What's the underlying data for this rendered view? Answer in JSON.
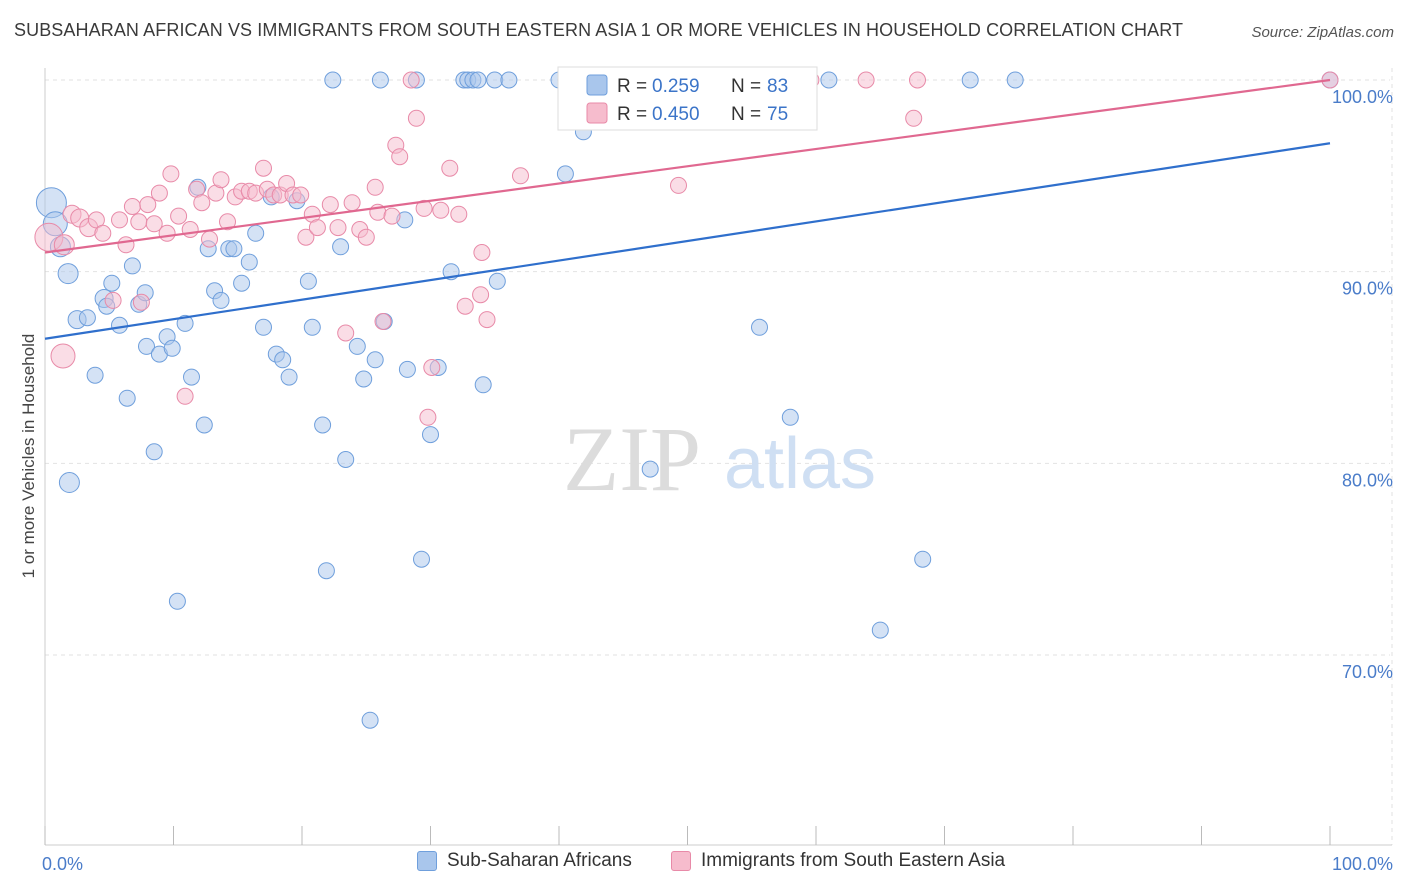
{
  "title": "SUBSAHARAN AFRICAN VS IMMIGRANTS FROM SOUTH EASTERN ASIA 1 OR MORE VEHICLES IN HOUSEHOLD CORRELATION CHART",
  "source": "Source: ZipAtlas.com",
  "watermark": {
    "zip": "ZIP",
    "atlas": "atlas"
  },
  "colors": {
    "blue_fill": "#a9c6ec",
    "blue_stroke": "#6f9fdc",
    "blue_line": "#2f6fcc",
    "pink_fill": "#f6bccd",
    "pink_stroke": "#e88aa8",
    "pink_line": "#e06890",
    "tick_label": "#4a7cc9",
    "grid": "#e2e2e2",
    "axis": "#cccccc"
  },
  "stats_box": {
    "rows": [
      {
        "series": "blue",
        "r_label": "R =",
        "r_value": "0.259",
        "n_label": "N =",
        "n_value": "83"
      },
      {
        "series": "pink",
        "r_label": "R =",
        "r_value": "0.450",
        "n_label": "N =",
        "n_value": "75"
      }
    ]
  },
  "legend": [
    {
      "series": "blue",
      "label": "Sub-Saharan Africans"
    },
    {
      "series": "pink",
      "label": "Immigrants from South Eastern Asia"
    }
  ],
  "chart_data": {
    "type": "scatter",
    "title": "SUBSAHARAN AFRICAN VS IMMIGRANTS FROM SOUTH EASTERN ASIA 1 OR MORE VEHICLES IN HOUSEHOLD CORRELATION CHART",
    "xlabel": "",
    "ylabel": "1 or more Vehicles in Household",
    "xlim": [
      0,
      100
    ],
    "ylim": [
      61,
      101.5
    ],
    "x_tick_labels": [
      "0.0%",
      "100.0%"
    ],
    "y_ticks": [
      {
        "value": 100,
        "label": "100.0%"
      },
      {
        "value": 90,
        "label": "90.0%"
      },
      {
        "value": 80,
        "label": "80.0%"
      },
      {
        "value": 70,
        "label": "70.0%"
      }
    ],
    "grid": true,
    "legend_position": "bottom",
    "series": [
      {
        "name": "Sub-Saharan Africans",
        "color": "blue",
        "r": 0.259,
        "n": 83,
        "trend": {
          "x": [
            0,
            100
          ],
          "y": [
            86.5,
            96.7
          ]
        },
        "points": [
          [
            0.5,
            93.6,
            15
          ],
          [
            0.8,
            92.5,
            12
          ],
          [
            1.2,
            91.3,
            10
          ],
          [
            1.8,
            89.9,
            10
          ],
          [
            2.5,
            87.5,
            9
          ],
          [
            1.9,
            79.0,
            10
          ],
          [
            3.3,
            87.6,
            8
          ],
          [
            3.9,
            84.6,
            8
          ],
          [
            4.6,
            88.6,
            9
          ],
          [
            4.8,
            88.2,
            8
          ],
          [
            5.2,
            89.4,
            8
          ],
          [
            5.8,
            87.2,
            8
          ],
          [
            6.4,
            83.4,
            8
          ],
          [
            6.8,
            90.3,
            8
          ],
          [
            7.3,
            88.3,
            8
          ],
          [
            7.8,
            88.9,
            8
          ],
          [
            7.9,
            86.1,
            8
          ],
          [
            8.5,
            80.6,
            8
          ],
          [
            8.9,
            85.7,
            8
          ],
          [
            9.5,
            86.6,
            8
          ],
          [
            9.9,
            86.0,
            8
          ],
          [
            10.3,
            72.8,
            8
          ],
          [
            10.9,
            87.3,
            8
          ],
          [
            11.4,
            84.5,
            8
          ],
          [
            11.9,
            94.4,
            8
          ],
          [
            12.4,
            82.0,
            8
          ],
          [
            12.7,
            91.2,
            8
          ],
          [
            13.2,
            89.0,
            8
          ],
          [
            13.7,
            88.5,
            8
          ],
          [
            14.3,
            91.2,
            8
          ],
          [
            14.7,
            91.2,
            8
          ],
          [
            15.3,
            89.4,
            8
          ],
          [
            15.9,
            90.5,
            8
          ],
          [
            16.4,
            92.0,
            8
          ],
          [
            17.0,
            87.1,
            8
          ],
          [
            17.6,
            93.9,
            8
          ],
          [
            18.0,
            85.7,
            8
          ],
          [
            18.5,
            85.4,
            8
          ],
          [
            19.0,
            84.5,
            8
          ],
          [
            19.6,
            93.7,
            8
          ],
          [
            20.5,
            89.5,
            8
          ],
          [
            20.8,
            87.1,
            8
          ],
          [
            21.6,
            82.0,
            8
          ],
          [
            21.9,
            74.4,
            8
          ],
          [
            22.4,
            100.0,
            8
          ],
          [
            23.0,
            91.3,
            8
          ],
          [
            23.4,
            80.2,
            8
          ],
          [
            24.3,
            86.1,
            8
          ],
          [
            24.8,
            84.4,
            8
          ],
          [
            25.3,
            66.6,
            8
          ],
          [
            25.7,
            85.4,
            8
          ],
          [
            26.1,
            100.0,
            8
          ],
          [
            26.4,
            87.4,
            8
          ],
          [
            28.0,
            92.7,
            8
          ],
          [
            28.2,
            84.9,
            8
          ],
          [
            28.9,
            100.0,
            8
          ],
          [
            29.3,
            75.0,
            8
          ],
          [
            30.0,
            81.5,
            8
          ],
          [
            30.6,
            85.0,
            8
          ],
          [
            31.6,
            90.0,
            8
          ],
          [
            32.6,
            100.0,
            8
          ],
          [
            32.9,
            100.0,
            8
          ],
          [
            33.3,
            100.0,
            8
          ],
          [
            33.7,
            100.0,
            8
          ],
          [
            34.1,
            84.1,
            8
          ],
          [
            35.0,
            100.0,
            8
          ],
          [
            35.2,
            89.5,
            8
          ],
          [
            36.1,
            100.0,
            8
          ],
          [
            40.0,
            100.0,
            8
          ],
          [
            40.5,
            95.1,
            8
          ],
          [
            41.9,
            97.3,
            8
          ],
          [
            42.8,
            100.0,
            8
          ],
          [
            45.7,
            100.0,
            8
          ],
          [
            47.1,
            79.7,
            8
          ],
          [
            52.5,
            100.0,
            8
          ],
          [
            55.6,
            87.1,
            8
          ],
          [
            58.0,
            82.4,
            8
          ],
          [
            61.0,
            100.0,
            8
          ],
          [
            65.0,
            71.3,
            8
          ],
          [
            68.3,
            75.0,
            8
          ],
          [
            72.0,
            100.0,
            8
          ],
          [
            75.5,
            100.0,
            8
          ],
          [
            100.0,
            100.0,
            8
          ]
        ]
      },
      {
        "name": "Immigrants from South Eastern Asia",
        "color": "pink",
        "r": 0.45,
        "n": 75,
        "trend": {
          "x": [
            0,
            100
          ],
          "y": [
            91.0,
            100.0
          ]
        },
        "points": [
          [
            0.3,
            91.8,
            14
          ],
          [
            1.4,
            85.6,
            12
          ],
          [
            1.5,
            91.4,
            10
          ],
          [
            2.1,
            93.0,
            9
          ],
          [
            2.7,
            92.8,
            9
          ],
          [
            3.4,
            92.3,
            9
          ],
          [
            4.0,
            92.7,
            8
          ],
          [
            4.5,
            92.0,
            8
          ],
          [
            5.3,
            88.5,
            8
          ],
          [
            5.8,
            92.7,
            8
          ],
          [
            6.3,
            91.4,
            8
          ],
          [
            6.8,
            93.4,
            8
          ],
          [
            7.3,
            92.6,
            8
          ],
          [
            7.5,
            88.4,
            8
          ],
          [
            8.0,
            93.5,
            8
          ],
          [
            8.5,
            92.5,
            8
          ],
          [
            8.9,
            94.1,
            8
          ],
          [
            9.5,
            92.0,
            8
          ],
          [
            9.8,
            95.1,
            8
          ],
          [
            10.4,
            92.9,
            8
          ],
          [
            10.9,
            83.5,
            8
          ],
          [
            11.3,
            92.2,
            8
          ],
          [
            11.8,
            94.3,
            8
          ],
          [
            12.2,
            93.6,
            8
          ],
          [
            12.8,
            91.7,
            8
          ],
          [
            13.3,
            94.1,
            8
          ],
          [
            13.7,
            94.8,
            8
          ],
          [
            14.2,
            92.6,
            8
          ],
          [
            14.8,
            93.9,
            8
          ],
          [
            15.3,
            94.2,
            8
          ],
          [
            15.9,
            94.2,
            8
          ],
          [
            16.4,
            94.1,
            8
          ],
          [
            17.0,
            95.4,
            8
          ],
          [
            17.3,
            94.3,
            8
          ],
          [
            17.8,
            94.0,
            8
          ],
          [
            18.3,
            94.0,
            8
          ],
          [
            18.8,
            94.6,
            8
          ],
          [
            19.3,
            94.0,
            8
          ],
          [
            19.9,
            94.0,
            8
          ],
          [
            20.3,
            91.8,
            8
          ],
          [
            20.8,
            93.0,
            8
          ],
          [
            21.2,
            92.3,
            8
          ],
          [
            22.2,
            93.5,
            8
          ],
          [
            22.8,
            92.3,
            8
          ],
          [
            23.4,
            86.8,
            8
          ],
          [
            23.9,
            93.6,
            8
          ],
          [
            24.5,
            92.2,
            8
          ],
          [
            25.0,
            91.8,
            8
          ],
          [
            25.7,
            94.4,
            8
          ],
          [
            25.9,
            93.1,
            8
          ],
          [
            26.3,
            87.4,
            8
          ],
          [
            27.0,
            92.9,
            8
          ],
          [
            27.3,
            96.6,
            8
          ],
          [
            27.6,
            96.0,
            8
          ],
          [
            28.5,
            100.0,
            8
          ],
          [
            28.9,
            98.0,
            8
          ],
          [
            29.5,
            93.3,
            8
          ],
          [
            29.8,
            82.4,
            8
          ],
          [
            30.1,
            85.0,
            8
          ],
          [
            30.8,
            93.2,
            8
          ],
          [
            31.5,
            95.4,
            8
          ],
          [
            32.2,
            93.0,
            8
          ],
          [
            32.7,
            88.2,
            8
          ],
          [
            33.9,
            88.8,
            8
          ],
          [
            34.0,
            91.0,
            8
          ],
          [
            34.4,
            87.5,
            8
          ],
          [
            37.0,
            95.0,
            8
          ],
          [
            44.8,
            100.0,
            8
          ],
          [
            49.3,
            94.5,
            8
          ],
          [
            56.5,
            100.0,
            8
          ],
          [
            59.6,
            100.0,
            8
          ],
          [
            63.9,
            100.0,
            8
          ],
          [
            67.6,
            98.0,
            8
          ],
          [
            67.9,
            100.0,
            8
          ],
          [
            100.0,
            100.0,
            8
          ]
        ]
      }
    ]
  }
}
